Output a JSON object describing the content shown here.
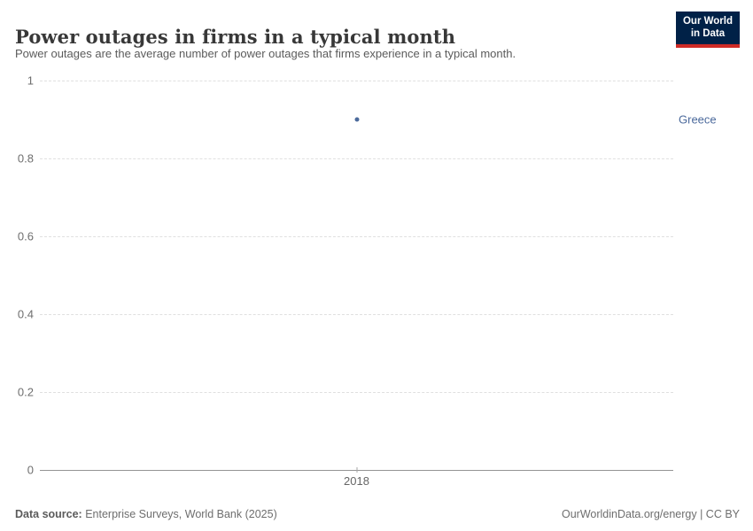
{
  "header": {
    "title": "Power outages in firms in a typical month",
    "subtitle": "Power outages are the average number of power outages that firms experience in a typical month.",
    "logo": {
      "line1": "Our World",
      "line2": "in Data"
    }
  },
  "chart_data": {
    "type": "scatter",
    "title": "Power outages in firms in a typical month",
    "series": [
      {
        "name": "Greece",
        "color": "#4C6A9C",
        "points": [
          {
            "x": 2018,
            "y": 0.9
          }
        ]
      }
    ],
    "x": [
      2018
    ],
    "xticks": [
      "2018"
    ],
    "yticks": [
      0,
      0.2,
      0.4,
      0.6,
      0.8,
      1
    ],
    "ylim": [
      0,
      1
    ],
    "xlabel": "",
    "ylabel": "",
    "grid": "horizontal-dashed",
    "legend_position": "right-of-point"
  },
  "footer": {
    "datasource_label": "Data source:",
    "datasource_value": " Enterprise Surveys, World Bank (2025)",
    "credit": "OurWorldinData.org/energy | CC BY"
  },
  "colors": {
    "accent": "#4C6A9C",
    "logo_bg": "#002147",
    "logo_red": "#cf2b26",
    "grid": "#e0e0e0",
    "axis": "#949494"
  }
}
